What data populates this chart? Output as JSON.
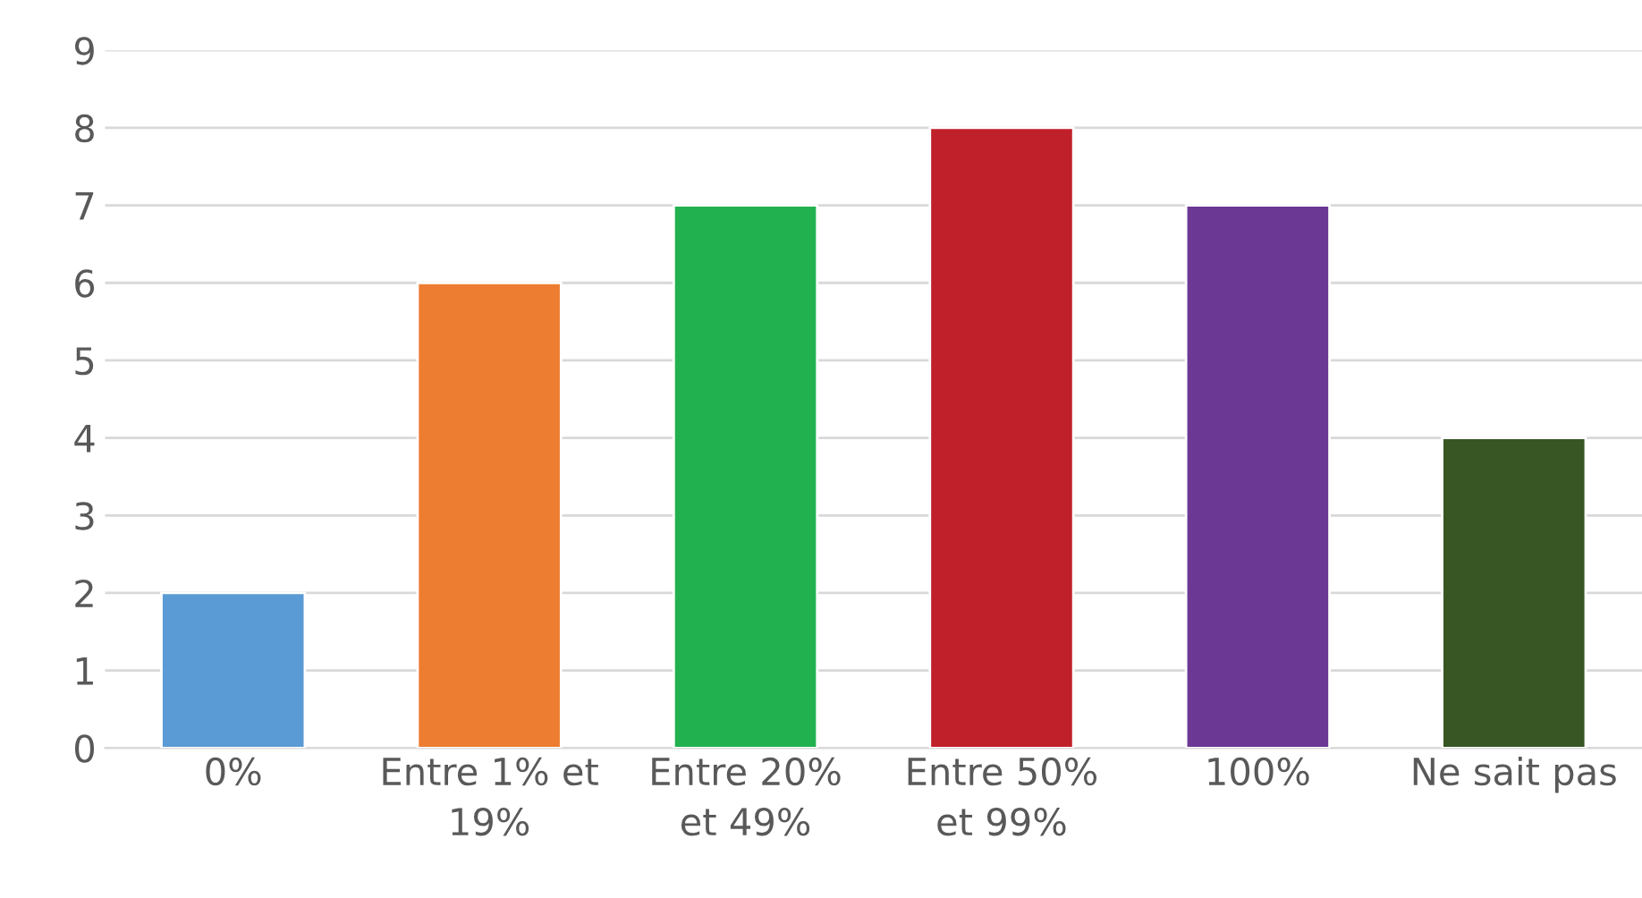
{
  "chart_data": {
    "type": "bar",
    "categories": [
      "0%",
      "Entre 1% et\n19%",
      "Entre 20%\net 49%",
      "Entre 50%\net 99%",
      "100%",
      "Ne sait pas"
    ],
    "values": [
      2,
      6,
      7,
      8,
      7,
      4
    ],
    "colors": [
      "#5b9bd5",
      "#ed7d31",
      "#21b14f",
      "#c0202a",
      "#6b3894",
      "#375623"
    ],
    "ylim": [
      0,
      9
    ],
    "yticks": [
      0,
      1,
      2,
      3,
      4,
      5,
      6,
      7,
      8,
      9
    ],
    "grid": "y",
    "legend": false
  }
}
